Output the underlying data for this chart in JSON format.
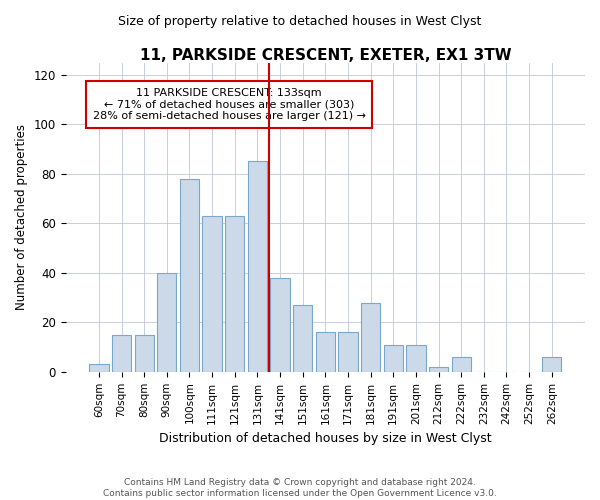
{
  "title": "11, PARKSIDE CRESCENT, EXETER, EX1 3TW",
  "subtitle": "Size of property relative to detached houses in West Clyst",
  "xlabel": "Distribution of detached houses by size in West Clyst",
  "ylabel": "Number of detached properties",
  "categories": [
    "60sqm",
    "70sqm",
    "80sqm",
    "90sqm",
    "100sqm",
    "111sqm",
    "121sqm",
    "131sqm",
    "141sqm",
    "151sqm",
    "161sqm",
    "171sqm",
    "181sqm",
    "191sqm",
    "201sqm",
    "212sqm",
    "222sqm",
    "232sqm",
    "242sqm",
    "252sqm",
    "262sqm"
  ],
  "values": [
    3,
    15,
    15,
    40,
    78,
    63,
    63,
    85,
    38,
    27,
    16,
    16,
    28,
    11,
    11,
    2,
    6,
    0,
    0,
    0,
    6
  ],
  "bar_color": "#ccd9e8",
  "bar_edge_color": "#7aa8cc",
  "vline_color": "#cc0000",
  "annotation_text": "11 PARKSIDE CRESCENT: 133sqm\n← 71% of detached houses are smaller (303)\n28% of semi-detached houses are larger (121) →",
  "annotation_box_color": "#ffffff",
  "annotation_box_edge": "#cc0000",
  "ylim": [
    0,
    125
  ],
  "yticks": [
    0,
    20,
    40,
    60,
    80,
    100,
    120
  ],
  "footer_line1": "Contains HM Land Registry data © Crown copyright and database right 2024.",
  "footer_line2": "Contains public sector information licensed under the Open Government Licence v3.0.",
  "background_color": "#ffffff",
  "plot_background": "#ffffff",
  "grid_color": "#c0c8d8"
}
